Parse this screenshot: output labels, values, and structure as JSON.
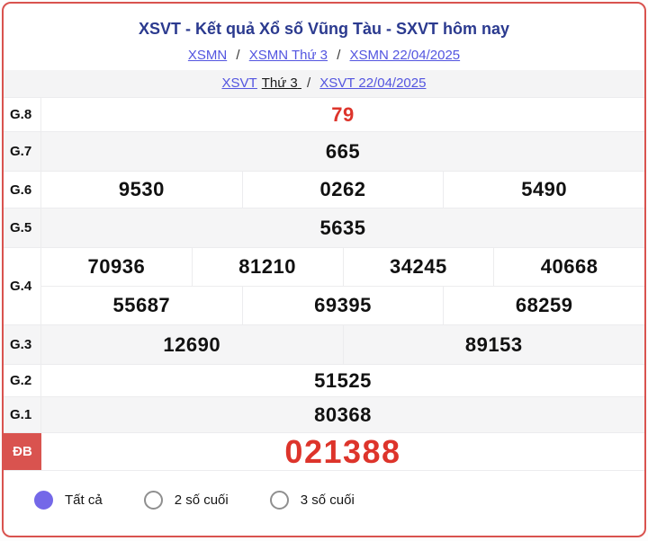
{
  "page": {
    "title": "XSVT - Kết quả Xổ số Vũng Tàu - SXVT hôm nay"
  },
  "breadcrumbs": {
    "separator": "/",
    "primary": [
      {
        "label": "XSMN"
      },
      {
        "label": "XSMN Thứ 3"
      },
      {
        "label": "XSMN 22/04/2025"
      }
    ],
    "secondary": {
      "link": "XSVT",
      "static_text": "Thứ 3",
      "date_link": "XSVT 22/04/2025"
    }
  },
  "results_table": {
    "rows": [
      {
        "label": "G.8",
        "values": [
          "79"
        ],
        "highlight": true
      },
      {
        "label": "G.7",
        "values": [
          "665"
        ]
      },
      {
        "label": "G.6",
        "values": [
          "9530",
          "0262",
          "5490"
        ]
      },
      {
        "label": "G.5",
        "values": [
          "5635"
        ]
      },
      {
        "label": "G.4",
        "subrows": [
          [
            "70936",
            "81210",
            "34245",
            "40668"
          ],
          [
            "55687",
            "69395",
            "68259"
          ]
        ]
      },
      {
        "label": "G.3",
        "values": [
          "12690",
          "89153"
        ]
      },
      {
        "label": "G.2",
        "values": [
          "51525"
        ]
      },
      {
        "label": "G.1",
        "values": [
          "80368"
        ]
      },
      {
        "label": "ĐB",
        "values": [
          "021388"
        ],
        "highlight": true,
        "special": true
      }
    ]
  },
  "filters": {
    "options": [
      {
        "label": "Tất cả",
        "selected": true
      },
      {
        "label": "2 số cuối",
        "selected": false
      },
      {
        "label": "3 số cuối",
        "selected": false
      }
    ]
  },
  "colors": {
    "card_border": "#d9534f",
    "special_badge": "#d9534f",
    "winning_red": "#dd342b",
    "title_navy": "#2b3a8f",
    "link_blue": "#5355e0",
    "radio_selected": "#7468e8"
  }
}
